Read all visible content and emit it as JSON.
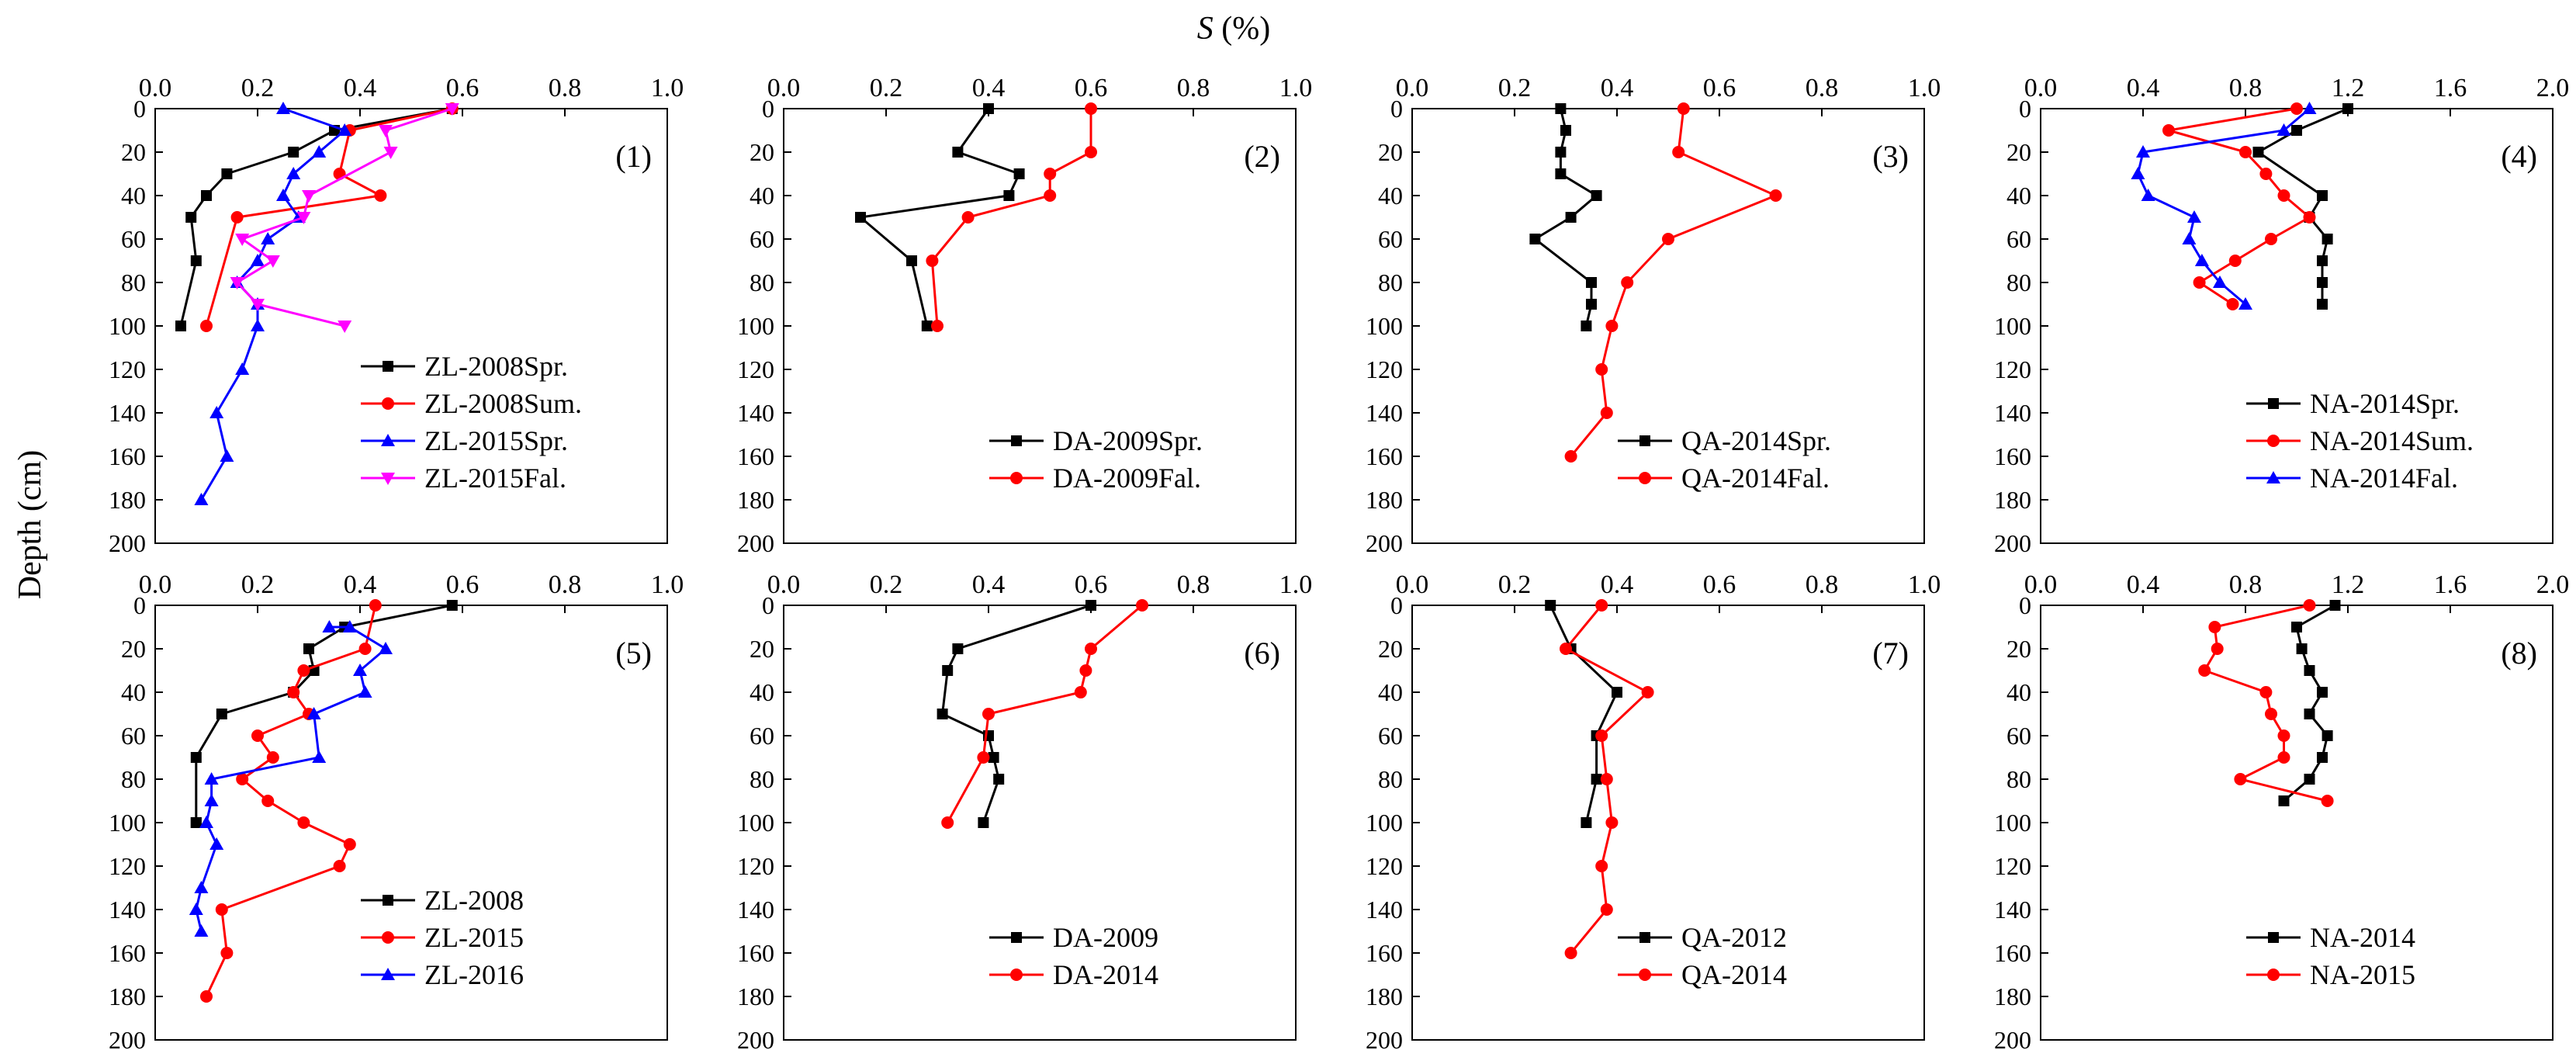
{
  "figure": {
    "x_title": "S (%)",
    "x_title_symbol": "S",
    "x_title_unit": " (%)",
    "y_title": "Depth (cm)"
  },
  "chart_data": [
    {
      "type": "line",
      "label": "(1)",
      "xlim": [
        0,
        1.0
      ],
      "xticks": [
        "0.0",
        "0.2",
        "0.4",
        "0.6",
        "0.8",
        "1.0"
      ],
      "xtick_values": [
        0,
        0.2,
        0.4,
        0.6,
        0.8,
        1.0
      ],
      "ylim": [
        0,
        200
      ],
      "yticks": [
        "0",
        "20",
        "40",
        "60",
        "80",
        "100",
        "120",
        "140",
        "160",
        "180",
        "200"
      ],
      "legend_position": "bottom-right",
      "series": [
        {
          "name": "ZL-2008Spr.",
          "color": "#000000",
          "marker": "square",
          "x": [
            0.58,
            0.35,
            0.27,
            0.14,
            0.1,
            0.07,
            0.08,
            0.05
          ],
          "y": [
            0,
            10,
            20,
            30,
            40,
            50,
            70,
            100
          ]
        },
        {
          "name": "ZL-2008Sum.",
          "color": "#ff0000",
          "marker": "circle",
          "x": [
            0.58,
            0.38,
            0.36,
            0.44,
            0.16,
            0.1
          ],
          "y": [
            0,
            10,
            30,
            40,
            50,
            100
          ]
        },
        {
          "name": "ZL-2015Spr.",
          "color": "#0000ff",
          "marker": "triangle-up",
          "x": [
            0.25,
            0.37,
            0.32,
            0.27,
            0.25,
            0.28,
            0.22,
            0.2,
            0.16,
            0.2,
            0.2,
            0.17,
            0.12,
            0.14,
            0.09
          ],
          "y": [
            0,
            10,
            20,
            30,
            40,
            50,
            60,
            70,
            80,
            90,
            100,
            120,
            140,
            160,
            180
          ]
        },
        {
          "name": "ZL-2015Fal.",
          "color": "#ff00ff",
          "marker": "triangle-down",
          "x": [
            0.58,
            0.45,
            0.46,
            0.3,
            0.29,
            0.17,
            0.23,
            0.16,
            0.2,
            0.37
          ],
          "y": [
            0,
            10,
            20,
            40,
            50,
            60,
            70,
            80,
            90,
            100
          ]
        }
      ]
    },
    {
      "type": "line",
      "label": "(2)",
      "xlim": [
        0,
        1.0
      ],
      "xticks": [
        "0.0",
        "0.2",
        "0.4",
        "0.6",
        "0.8",
        "1.0"
      ],
      "xtick_values": [
        0,
        0.2,
        0.4,
        0.6,
        0.8,
        1.0
      ],
      "ylim": [
        0,
        200
      ],
      "yticks": [
        "0",
        "20",
        "40",
        "60",
        "80",
        "100",
        "120",
        "140",
        "160",
        "180",
        "200"
      ],
      "legend_position": "bottom-right",
      "series": [
        {
          "name": "DA-2009Spr.",
          "color": "#000000",
          "marker": "square",
          "x": [
            0.4,
            0.34,
            0.46,
            0.44,
            0.15,
            0.25,
            0.28
          ],
          "y": [
            0,
            20,
            30,
            40,
            50,
            70,
            100
          ]
        },
        {
          "name": "DA-2009Fal.",
          "color": "#ff0000",
          "marker": "circle",
          "x": [
            0.6,
            0.6,
            0.52,
            0.52,
            0.36,
            0.29,
            0.3
          ],
          "y": [
            0,
            20,
            30,
            40,
            50,
            70,
            100
          ]
        }
      ]
    },
    {
      "type": "line",
      "label": "(3)",
      "xlim": [
        0,
        1.0
      ],
      "xticks": [
        "0.0",
        "0.2",
        "0.4",
        "0.6",
        "0.8",
        "1.0"
      ],
      "xtick_values": [
        0,
        0.2,
        0.4,
        0.6,
        0.8,
        1.0
      ],
      "ylim": [
        0,
        200
      ],
      "yticks": [
        "0",
        "20",
        "40",
        "60",
        "80",
        "100",
        "120",
        "140",
        "160",
        "180",
        "200"
      ],
      "legend_position": "bottom-right",
      "series": [
        {
          "name": "QA-2014Spr.",
          "color": "#000000",
          "marker": "square",
          "x": [
            0.29,
            0.3,
            0.29,
            0.29,
            0.36,
            0.31,
            0.24,
            0.35,
            0.35,
            0.34
          ],
          "y": [
            0,
            10,
            20,
            30,
            40,
            50,
            60,
            80,
            90,
            100
          ]
        },
        {
          "name": "QA-2014Fal.",
          "color": "#ff0000",
          "marker": "circle",
          "x": [
            0.53,
            0.52,
            0.71,
            0.5,
            0.42,
            0.39,
            0.37,
            0.38,
            0.31
          ],
          "y": [
            0,
            20,
            40,
            60,
            80,
            100,
            120,
            140,
            160
          ]
        }
      ]
    },
    {
      "type": "line",
      "label": "(4)",
      "xlim": [
        0,
        2.0
      ],
      "xticks": [
        "0.0",
        "0.4",
        "0.8",
        "1.2",
        "1.6",
        "2.0"
      ],
      "xtick_values": [
        0,
        0.4,
        0.8,
        1.2,
        1.6,
        2.0
      ],
      "ylim": [
        0,
        200
      ],
      "yticks": [
        "0",
        "20",
        "40",
        "60",
        "80",
        "100",
        "120",
        "140",
        "160",
        "180",
        "200"
      ],
      "legend_position": "bottom-right",
      "series": [
        {
          "name": "NA-2014Spr.",
          "color": "#000000",
          "marker": "square",
          "x": [
            1.2,
            1.0,
            0.85,
            1.1,
            1.05,
            1.12,
            1.1,
            1.1,
            1.1
          ],
          "y": [
            0,
            10,
            20,
            40,
            50,
            60,
            70,
            80,
            90
          ]
        },
        {
          "name": "NA-2014Sum.",
          "color": "#ff0000",
          "marker": "circle",
          "x": [
            1.0,
            0.5,
            0.8,
            0.88,
            0.95,
            1.05,
            0.9,
            0.76,
            0.62,
            0.75
          ],
          "y": [
            0,
            10,
            20,
            30,
            40,
            50,
            60,
            70,
            80,
            90
          ]
        },
        {
          "name": "NA-2014Fal.",
          "color": "#0000ff",
          "marker": "triangle-up",
          "x": [
            1.05,
            0.95,
            0.4,
            0.38,
            0.42,
            0.6,
            0.58,
            0.63,
            0.7,
            0.8
          ],
          "y": [
            0,
            10,
            20,
            30,
            40,
            50,
            60,
            70,
            80,
            90
          ]
        }
      ]
    },
    {
      "type": "line",
      "label": "(5)",
      "xlim": [
        0,
        1.0
      ],
      "xticks": [
        "0.0",
        "0.2",
        "0.4",
        "0.6",
        "0.8",
        "1.0"
      ],
      "xtick_values": [
        0,
        0.2,
        0.4,
        0.6,
        0.8,
        1.0
      ],
      "ylim": [
        0,
        200
      ],
      "yticks": [
        "0",
        "20",
        "40",
        "60",
        "80",
        "100",
        "120",
        "140",
        "160",
        "180",
        "200"
      ],
      "legend_position": "bottom-right",
      "series": [
        {
          "name": "ZL-2008",
          "color": "#000000",
          "marker": "square",
          "x": [
            0.58,
            0.37,
            0.3,
            0.31,
            0.27,
            0.13,
            0.08,
            0.08,
            0.08
          ],
          "y": [
            0,
            10,
            20,
            30,
            40,
            50,
            70,
            100,
            100
          ]
        },
        {
          "name": "ZL-2015",
          "color": "#ff0000",
          "marker": "circle",
          "x": [
            0.43,
            0.41,
            0.29,
            0.27,
            0.3,
            0.2,
            0.23,
            0.17,
            0.22,
            0.29,
            0.38,
            0.36,
            0.13,
            0.14,
            0.1
          ],
          "y": [
            0,
            20,
            30,
            40,
            50,
            60,
            70,
            80,
            90,
            100,
            110,
            120,
            140,
            160,
            180
          ]
        },
        {
          "name": "ZL-2016",
          "color": "#0000ff",
          "marker": "triangle-up",
          "x": [
            0.34,
            0.38,
            0.45,
            0.4,
            0.41,
            0.31,
            0.32,
            0.11,
            0.11,
            0.1,
            0.12,
            0.09,
            0.08,
            0.09
          ],
          "y": [
            10,
            10,
            20,
            30,
            40,
            50,
            70,
            80,
            90,
            100,
            110,
            130,
            140,
            150
          ]
        }
      ]
    },
    {
      "type": "line",
      "label": "(6)",
      "xlim": [
        0,
        1.0
      ],
      "xticks": [
        "0.0",
        "0.2",
        "0.4",
        "0.6",
        "0.8",
        "1.0"
      ],
      "xtick_values": [
        0,
        0.2,
        0.4,
        0.6,
        0.8,
        1.0
      ],
      "ylim": [
        0,
        200
      ],
      "yticks": [
        "0",
        "20",
        "40",
        "60",
        "80",
        "100",
        "120",
        "140",
        "160",
        "180",
        "200"
      ],
      "legend_position": "bottom-right",
      "series": [
        {
          "name": "DA-2009",
          "color": "#000000",
          "marker": "square",
          "x": [
            0.6,
            0.34,
            0.32,
            0.31,
            0.4,
            0.41,
            0.42,
            0.39
          ],
          "y": [
            0,
            20,
            30,
            50,
            60,
            70,
            80,
            100
          ]
        },
        {
          "name": "DA-2014",
          "color": "#ff0000",
          "marker": "circle",
          "x": [
            0.7,
            0.6,
            0.59,
            0.58,
            0.4,
            0.39,
            0.32
          ],
          "y": [
            0,
            20,
            30,
            40,
            50,
            70,
            100
          ]
        }
      ]
    },
    {
      "type": "line",
      "label": "(7)",
      "xlim": [
        0,
        1.0
      ],
      "xticks": [
        "0.0",
        "0.2",
        "0.4",
        "0.6",
        "0.8",
        "1.0"
      ],
      "xtick_values": [
        0,
        0.2,
        0.4,
        0.6,
        0.8,
        1.0
      ],
      "ylim": [
        0,
        200
      ],
      "yticks": [
        "0",
        "20",
        "40",
        "60",
        "80",
        "100",
        "120",
        "140",
        "160",
        "180",
        "200"
      ],
      "legend_position": "bottom-right",
      "series": [
        {
          "name": "QA-2012",
          "color": "#000000",
          "marker": "square",
          "x": [
            0.27,
            0.31,
            0.4,
            0.36,
            0.36,
            0.34
          ],
          "y": [
            0,
            20,
            40,
            60,
            80,
            100
          ]
        },
        {
          "name": "QA-2014",
          "color": "#ff0000",
          "marker": "circle",
          "x": [
            0.37,
            0.3,
            0.46,
            0.37,
            0.38,
            0.39,
            0.37,
            0.38,
            0.31
          ],
          "y": [
            0,
            20,
            40,
            60,
            80,
            100,
            120,
            140,
            160
          ]
        }
      ]
    },
    {
      "type": "line",
      "label": "(8)",
      "xlim": [
        0,
        2.0
      ],
      "xticks": [
        "0.0",
        "0.4",
        "0.8",
        "1.2",
        "1.6",
        "2.0"
      ],
      "xtick_values": [
        0,
        0.4,
        0.8,
        1.2,
        1.6,
        2.0
      ],
      "ylim": [
        0,
        200
      ],
      "yticks": [
        "0",
        "20",
        "40",
        "60",
        "80",
        "100",
        "120",
        "140",
        "160",
        "180",
        "200"
      ],
      "legend_position": "bottom-right",
      "series": [
        {
          "name": "NA-2014",
          "color": "#000000",
          "marker": "square",
          "x": [
            1.15,
            1.0,
            1.02,
            1.05,
            1.1,
            1.05,
            1.12,
            1.1,
            1.05,
            0.95
          ],
          "y": [
            0,
            10,
            20,
            30,
            40,
            50,
            60,
            70,
            80,
            90
          ]
        },
        {
          "name": "NA-2015",
          "color": "#ff0000",
          "marker": "circle",
          "x": [
            1.05,
            0.68,
            0.69,
            0.64,
            0.88,
            0.9,
            0.95,
            0.95,
            0.78,
            1.12
          ],
          "y": [
            0,
            10,
            20,
            30,
            40,
            50,
            60,
            70,
            80,
            90
          ]
        }
      ]
    }
  ]
}
